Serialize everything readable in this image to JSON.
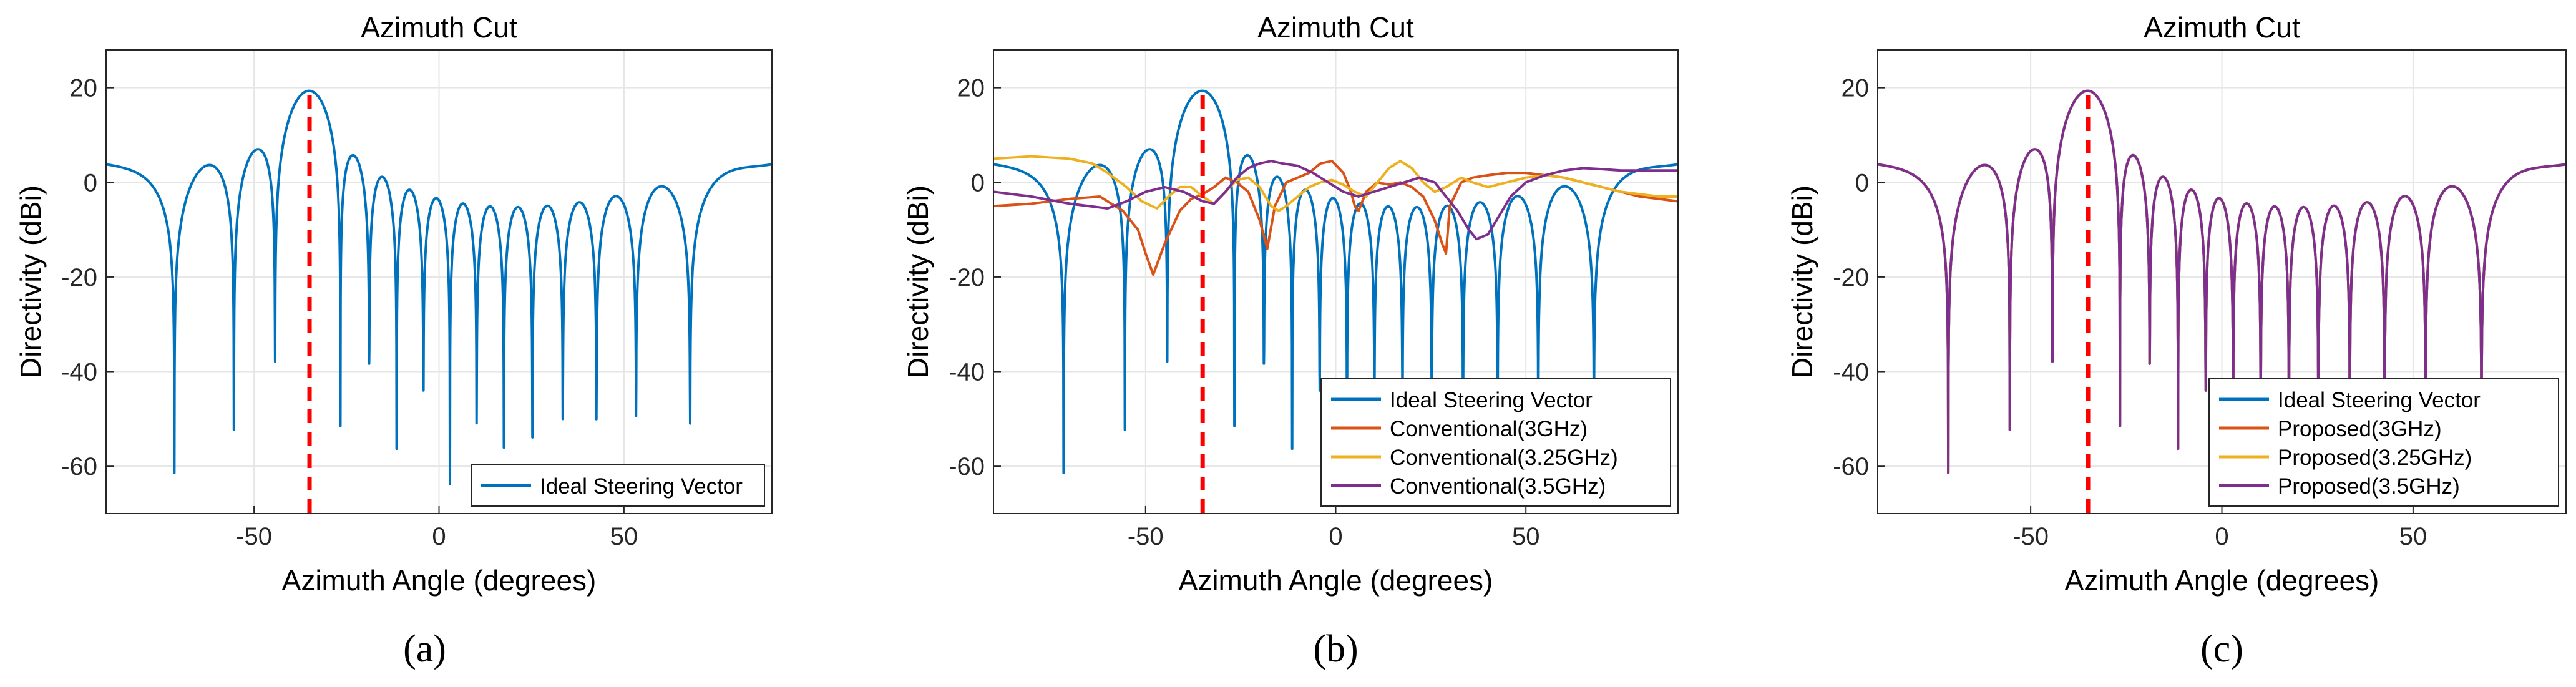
{
  "colors": {
    "ideal": "#0072BD",
    "f3": "#D95319",
    "f325": "#EDB120",
    "f35": "#7E2F8E",
    "steer": "#FF0000",
    "grid": "#E6E6E6",
    "axis": "#262626"
  },
  "chart_data": [
    {
      "type": "line",
      "caption": "(a)",
      "title": "Azimuth Cut",
      "xlabel": "Azimuth Angle (degrees)",
      "ylabel": "Directivity (dBi)",
      "xlim": [
        -90,
        90
      ],
      "ylim": [
        -70,
        28
      ],
      "xticks": [
        -50,
        0,
        50
      ],
      "xtick_labels": [
        "-50",
        "0",
        "50"
      ],
      "yticks": [
        -60,
        -40,
        -20,
        0,
        20
      ],
      "ytick_labels": [
        "-60",
        "-40",
        "-20",
        "0",
        "20"
      ],
      "grid": true,
      "legend_position": "bottom-right",
      "steering_angle": -35,
      "series": [
        {
          "name": "Ideal Steering Vector",
          "color_key": "ideal",
          "model": "ideal"
        }
      ]
    },
    {
      "type": "line",
      "caption": "(b)",
      "title": "Azimuth Cut",
      "xlabel": "Azimuth Angle (degrees)",
      "ylabel": "Directivity (dBi)",
      "xlim": [
        -90,
        90
      ],
      "ylim": [
        -70,
        28
      ],
      "xticks": [
        -50,
        0,
        50
      ],
      "xtick_labels": [
        "-50",
        "0",
        "50"
      ],
      "yticks": [
        -60,
        -40,
        -20,
        0,
        20
      ],
      "ytick_labels": [
        "-60",
        "-40",
        "-20",
        "0",
        "20"
      ],
      "grid": true,
      "legend_position": "bottom-right",
      "steering_angle": -35,
      "series": [
        {
          "name": "Ideal Steering Vector",
          "color_key": "ideal",
          "model": "ideal"
        },
        {
          "name": "Conventional(3GHz)",
          "color_key": "f3",
          "model": "points",
          "x": [
            -90,
            -80,
            -70,
            -62,
            -56,
            -52,
            -50,
            -48,
            -45,
            -41,
            -38,
            -35,
            -32,
            -29,
            -26,
            -23,
            -20,
            -18,
            -16,
            -13,
            -10,
            -7,
            -4,
            -1,
            2,
            4,
            5,
            6,
            8,
            11,
            14,
            17,
            20,
            23,
            26,
            28,
            29,
            30,
            33,
            36,
            40,
            45,
            50,
            55,
            60,
            65,
            70,
            75,
            80,
            85,
            90
          ],
          "y": [
            -5,
            -4.5,
            -3.5,
            -3,
            -6,
            -10,
            -15,
            -19.5,
            -13,
            -6,
            -3.5,
            -2.5,
            -1,
            1,
            0,
            -2,
            -8,
            -14,
            -5,
            0,
            1,
            2,
            4,
            4.5,
            2,
            -2,
            -5,
            -6,
            -2,
            0,
            -0.5,
            0,
            -1,
            -3,
            -8,
            -13,
            -15,
            -5,
            0,
            1,
            1.5,
            2,
            2,
            1.5,
            1,
            0,
            -1,
            -2,
            -3,
            -3.5,
            -4
          ]
        },
        {
          "name": "Conventional(3.25GHz)",
          "color_key": "f325",
          "model": "points",
          "x": [
            -90,
            -80,
            -70,
            -64,
            -60,
            -55,
            -51,
            -47,
            -44,
            -41,
            -38,
            -35,
            -32,
            -29,
            -26,
            -23,
            -20,
            -17,
            -15,
            -13,
            -10,
            -7,
            -4,
            -1,
            2,
            5,
            8,
            11,
            14,
            17,
            20,
            23,
            26,
            29,
            31,
            33,
            36,
            40,
            45,
            50,
            55,
            60,
            65,
            70,
            75,
            80,
            85,
            90
          ],
          "y": [
            5,
            5.5,
            5,
            4,
            2,
            -1,
            -4,
            -5.5,
            -3,
            -1,
            -1,
            -3,
            -4.5,
            -2,
            0.5,
            1,
            -1,
            -5,
            -6,
            -5,
            -3,
            -1,
            0,
            0.5,
            -0.5,
            -2,
            -3,
            0,
            3,
            4.5,
            3,
            0,
            -2,
            -1,
            0,
            1,
            0,
            -1,
            0,
            1,
            1.5,
            1,
            0,
            -1,
            -2,
            -2.5,
            -3,
            -3
          ]
        },
        {
          "name": "Conventional(3.5GHz)",
          "color_key": "f35",
          "model": "points",
          "x": [
            -90,
            -80,
            -70,
            -60,
            -55,
            -50,
            -45,
            -40,
            -35,
            -32,
            -29,
            -26,
            -23,
            -20,
            -17,
            -14,
            -10,
            -6,
            -2,
            2,
            6,
            10,
            14,
            18,
            22,
            26,
            29,
            32,
            35,
            37,
            40,
            43,
            46,
            50,
            55,
            60,
            65,
            70,
            75,
            80,
            85,
            90
          ],
          "y": [
            -2,
            -3,
            -4.5,
            -5.5,
            -4,
            -2,
            -1,
            -2,
            -4,
            -4.5,
            -2,
            1,
            3,
            4,
            4.5,
            4,
            3.5,
            2,
            0,
            -2,
            -3,
            -2,
            -1,
            0,
            1,
            0,
            -3,
            -6,
            -10,
            -12,
            -11,
            -7,
            -3,
            0,
            1.5,
            2.5,
            3,
            2.8,
            2.5,
            2.5,
            2.5,
            2.5
          ]
        }
      ],
      "legend_entries": [
        "Ideal Steering Vector",
        "Conventional(3GHz)",
        "Conventional(3.25GHz)",
        "Conventional(3.5GHz)"
      ]
    },
    {
      "type": "line",
      "caption": "(c)",
      "title": "Azimuth Cut",
      "xlabel": "Azimuth Angle (degrees)",
      "ylabel": "Directivity (dBi)",
      "xlim": [
        -90,
        90
      ],
      "ylim": [
        -70,
        28
      ],
      "xticks": [
        -50,
        0,
        50
      ],
      "xtick_labels": [
        "-50",
        "0",
        "50"
      ],
      "yticks": [
        -60,
        -40,
        -20,
        0,
        20
      ],
      "ytick_labels": [
        "-60",
        "-40",
        "-20",
        "0",
        "20"
      ],
      "grid": true,
      "legend_position": "bottom-right",
      "steering_angle": -35,
      "series": [
        {
          "name": "Ideal Steering Vector",
          "color_key": "ideal",
          "model": "ideal"
        },
        {
          "name": "Proposed(3GHz)",
          "color_key": "f3",
          "model": "ideal"
        },
        {
          "name": "Proposed(3.25GHz)",
          "color_key": "f325",
          "model": "ideal"
        },
        {
          "name": "Proposed(3.5GHz)",
          "color_key": "f35",
          "model": "ideal"
        }
      ],
      "legend_entries": [
        "Ideal Steering Vector",
        "Proposed(3GHz)",
        "Proposed(3.25GHz)",
        "Proposed(3.5GHz)"
      ]
    }
  ]
}
